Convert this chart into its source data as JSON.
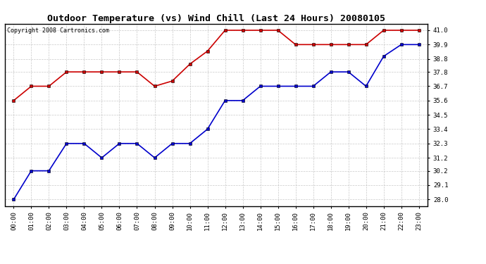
{
  "title": "Outdoor Temperature (vs) Wind Chill (Last 24 Hours) 20080105",
  "copyright": "Copyright 2008 Cartronics.com",
  "hours": [
    "00:00",
    "01:00",
    "02:00",
    "03:00",
    "04:00",
    "05:00",
    "06:00",
    "07:00",
    "08:00",
    "09:00",
    "10:00",
    "11:00",
    "12:00",
    "13:00",
    "14:00",
    "15:00",
    "16:00",
    "17:00",
    "18:00",
    "19:00",
    "20:00",
    "21:00",
    "22:00",
    "23:00"
  ],
  "temp": [
    35.6,
    36.7,
    36.7,
    37.8,
    37.8,
    37.8,
    37.8,
    37.8,
    36.7,
    37.1,
    38.4,
    39.4,
    41.0,
    41.0,
    41.0,
    41.0,
    39.9,
    39.9,
    39.9,
    39.9,
    39.9,
    41.0,
    41.0,
    41.0
  ],
  "windchill": [
    28.0,
    30.2,
    30.2,
    32.3,
    32.3,
    31.2,
    32.3,
    32.3,
    31.2,
    32.3,
    32.3,
    33.4,
    35.6,
    35.6,
    36.7,
    36.7,
    36.7,
    36.7,
    37.8,
    37.8,
    36.7,
    39.0,
    39.9,
    39.9
  ],
  "temp_color": "#cc0000",
  "windchill_color": "#0000cc",
  "ylim": [
    27.5,
    41.5
  ],
  "yticks": [
    28.0,
    29.1,
    30.2,
    31.2,
    32.3,
    33.4,
    34.5,
    35.6,
    36.7,
    37.8,
    38.8,
    39.9,
    41.0
  ],
  "bg_color": "#ffffff",
  "plot_bg_color": "#ffffff",
  "grid_color": "#bbbbbb",
  "title_fontsize": 9.5,
  "copyright_fontsize": 6,
  "tick_fontsize": 6.5,
  "marker": "s",
  "marker_size": 3,
  "line_width": 1.2
}
